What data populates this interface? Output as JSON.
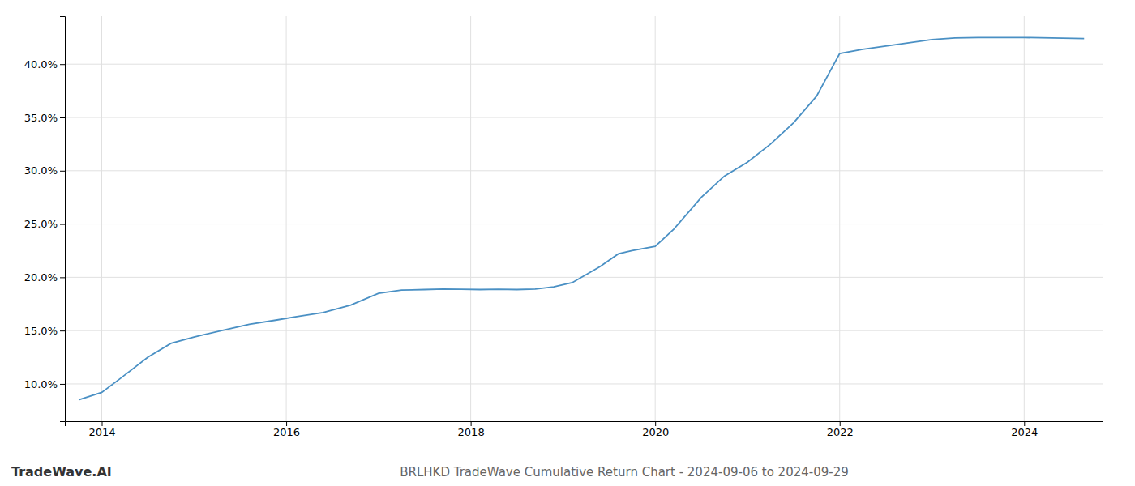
{
  "chart_data": {
    "type": "line",
    "title": "BRLHKD TradeWave Cumulative Return Chart - 2024-09-06 to 2024-09-29",
    "annotations": [
      {
        "text": "TradeWave.AI"
      }
    ],
    "x": [
      2013.75,
      2014.0,
      2014.2,
      2014.5,
      2014.75,
      2015.0,
      2015.3,
      2015.6,
      2015.9,
      2016.1,
      2016.4,
      2016.7,
      2017.0,
      2017.25,
      2017.5,
      2017.7,
      2017.9,
      2018.1,
      2018.3,
      2018.5,
      2018.7,
      2018.9,
      2019.1,
      2019.4,
      2019.6,
      2019.75,
      2020.0,
      2020.2,
      2020.5,
      2020.75,
      2021.0,
      2021.25,
      2021.5,
      2021.75,
      2022.0,
      2022.25,
      2022.5,
      2022.75,
      2023.0,
      2023.25,
      2023.5,
      2023.75,
      2024.0,
      2024.3,
      2024.65
    ],
    "values": [
      8.5,
      9.2,
      10.5,
      12.5,
      13.8,
      14.4,
      15.0,
      15.6,
      16.0,
      16.3,
      16.7,
      17.4,
      18.5,
      18.8,
      18.85,
      18.9,
      18.88,
      18.85,
      18.88,
      18.85,
      18.9,
      19.1,
      19.5,
      21.0,
      22.2,
      22.5,
      22.9,
      24.5,
      27.5,
      29.5,
      30.8,
      32.5,
      34.5,
      37.0,
      41.0,
      41.4,
      41.7,
      42.0,
      42.3,
      42.45,
      42.5,
      42.5,
      42.5,
      42.45,
      42.4
    ],
    "color": "#4a90c4",
    "xlim": [
      2013.6,
      2024.85
    ],
    "ylim": [
      6.5,
      44.5
    ],
    "xticks": [
      2014,
      2016,
      2018,
      2020,
      2022,
      2024
    ],
    "yticks": [
      {
        "value": 10.0,
        "label": "10.0%"
      },
      {
        "value": 15.0,
        "label": "15.0%"
      },
      {
        "value": 20.0,
        "label": "20.0%"
      },
      {
        "value": 25.0,
        "label": "25.0%"
      },
      {
        "value": 30.0,
        "label": "30.0%"
      },
      {
        "value": 35.0,
        "label": "35.0%"
      },
      {
        "value": 40.0,
        "label": "40.0%"
      }
    ],
    "grid": true
  }
}
